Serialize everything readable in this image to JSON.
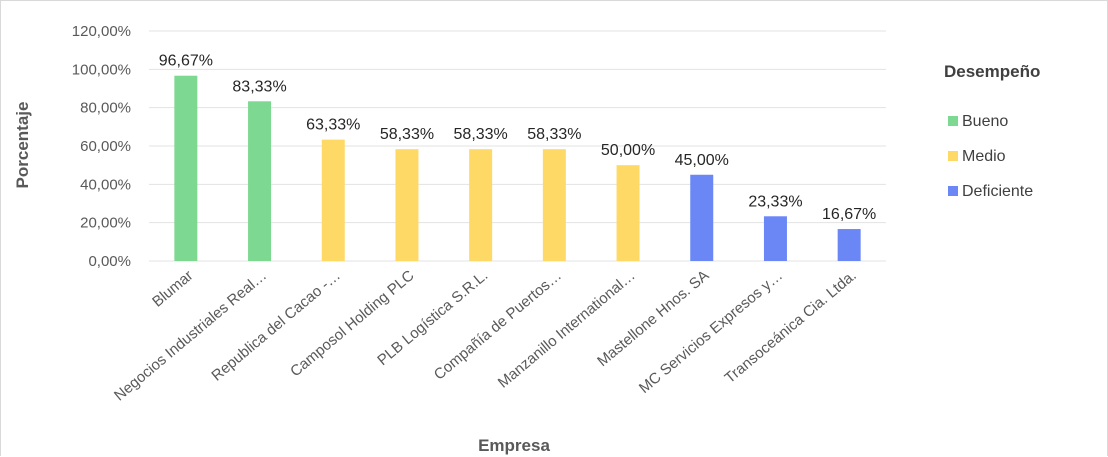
{
  "chart_data": {
    "type": "bar",
    "title": "",
    "xlabel": "Empresa",
    "ylabel": "Porcentaje",
    "ylim": [
      0,
      120
    ],
    "yticks": [
      "0,00%",
      "20,00%",
      "40,00%",
      "60,00%",
      "80,00%",
      "100,00%",
      "120,00%"
    ],
    "grid": true,
    "legend_position": "right",
    "legend_title": "Desempeño",
    "categories": [
      "Blumar",
      "Negocios Industriales Real…",
      "Republica del Cacao -…",
      "Camposol Holding PLC",
      "PLB Logística S.R.L.",
      "Compañía de Puertos…",
      "Manzanillo International…",
      "Mastellone Hnos. SA",
      "MC Servicios Expresos y…",
      "Transoceánica Cia. Ltda."
    ],
    "values": [
      96.67,
      83.33,
      63.33,
      58.33,
      58.33,
      58.33,
      50.0,
      45.0,
      23.33,
      16.67
    ],
    "value_labels": [
      "96,67%",
      "83,33%",
      "63,33%",
      "58,33%",
      "58,33%",
      "58,33%",
      "50,00%",
      "45,00%",
      "23,33%",
      "16,67%"
    ],
    "groups": [
      "Bueno",
      "Bueno",
      "Medio",
      "Medio",
      "Medio",
      "Medio",
      "Medio",
      "Deficiente",
      "Deficiente",
      "Deficiente"
    ],
    "legend": [
      {
        "name": "Bueno",
        "color": "#7dd891"
      },
      {
        "name": "Medio",
        "color": "#ffd966"
      },
      {
        "name": "Deficiente",
        "color": "#6a87f5"
      }
    ]
  }
}
